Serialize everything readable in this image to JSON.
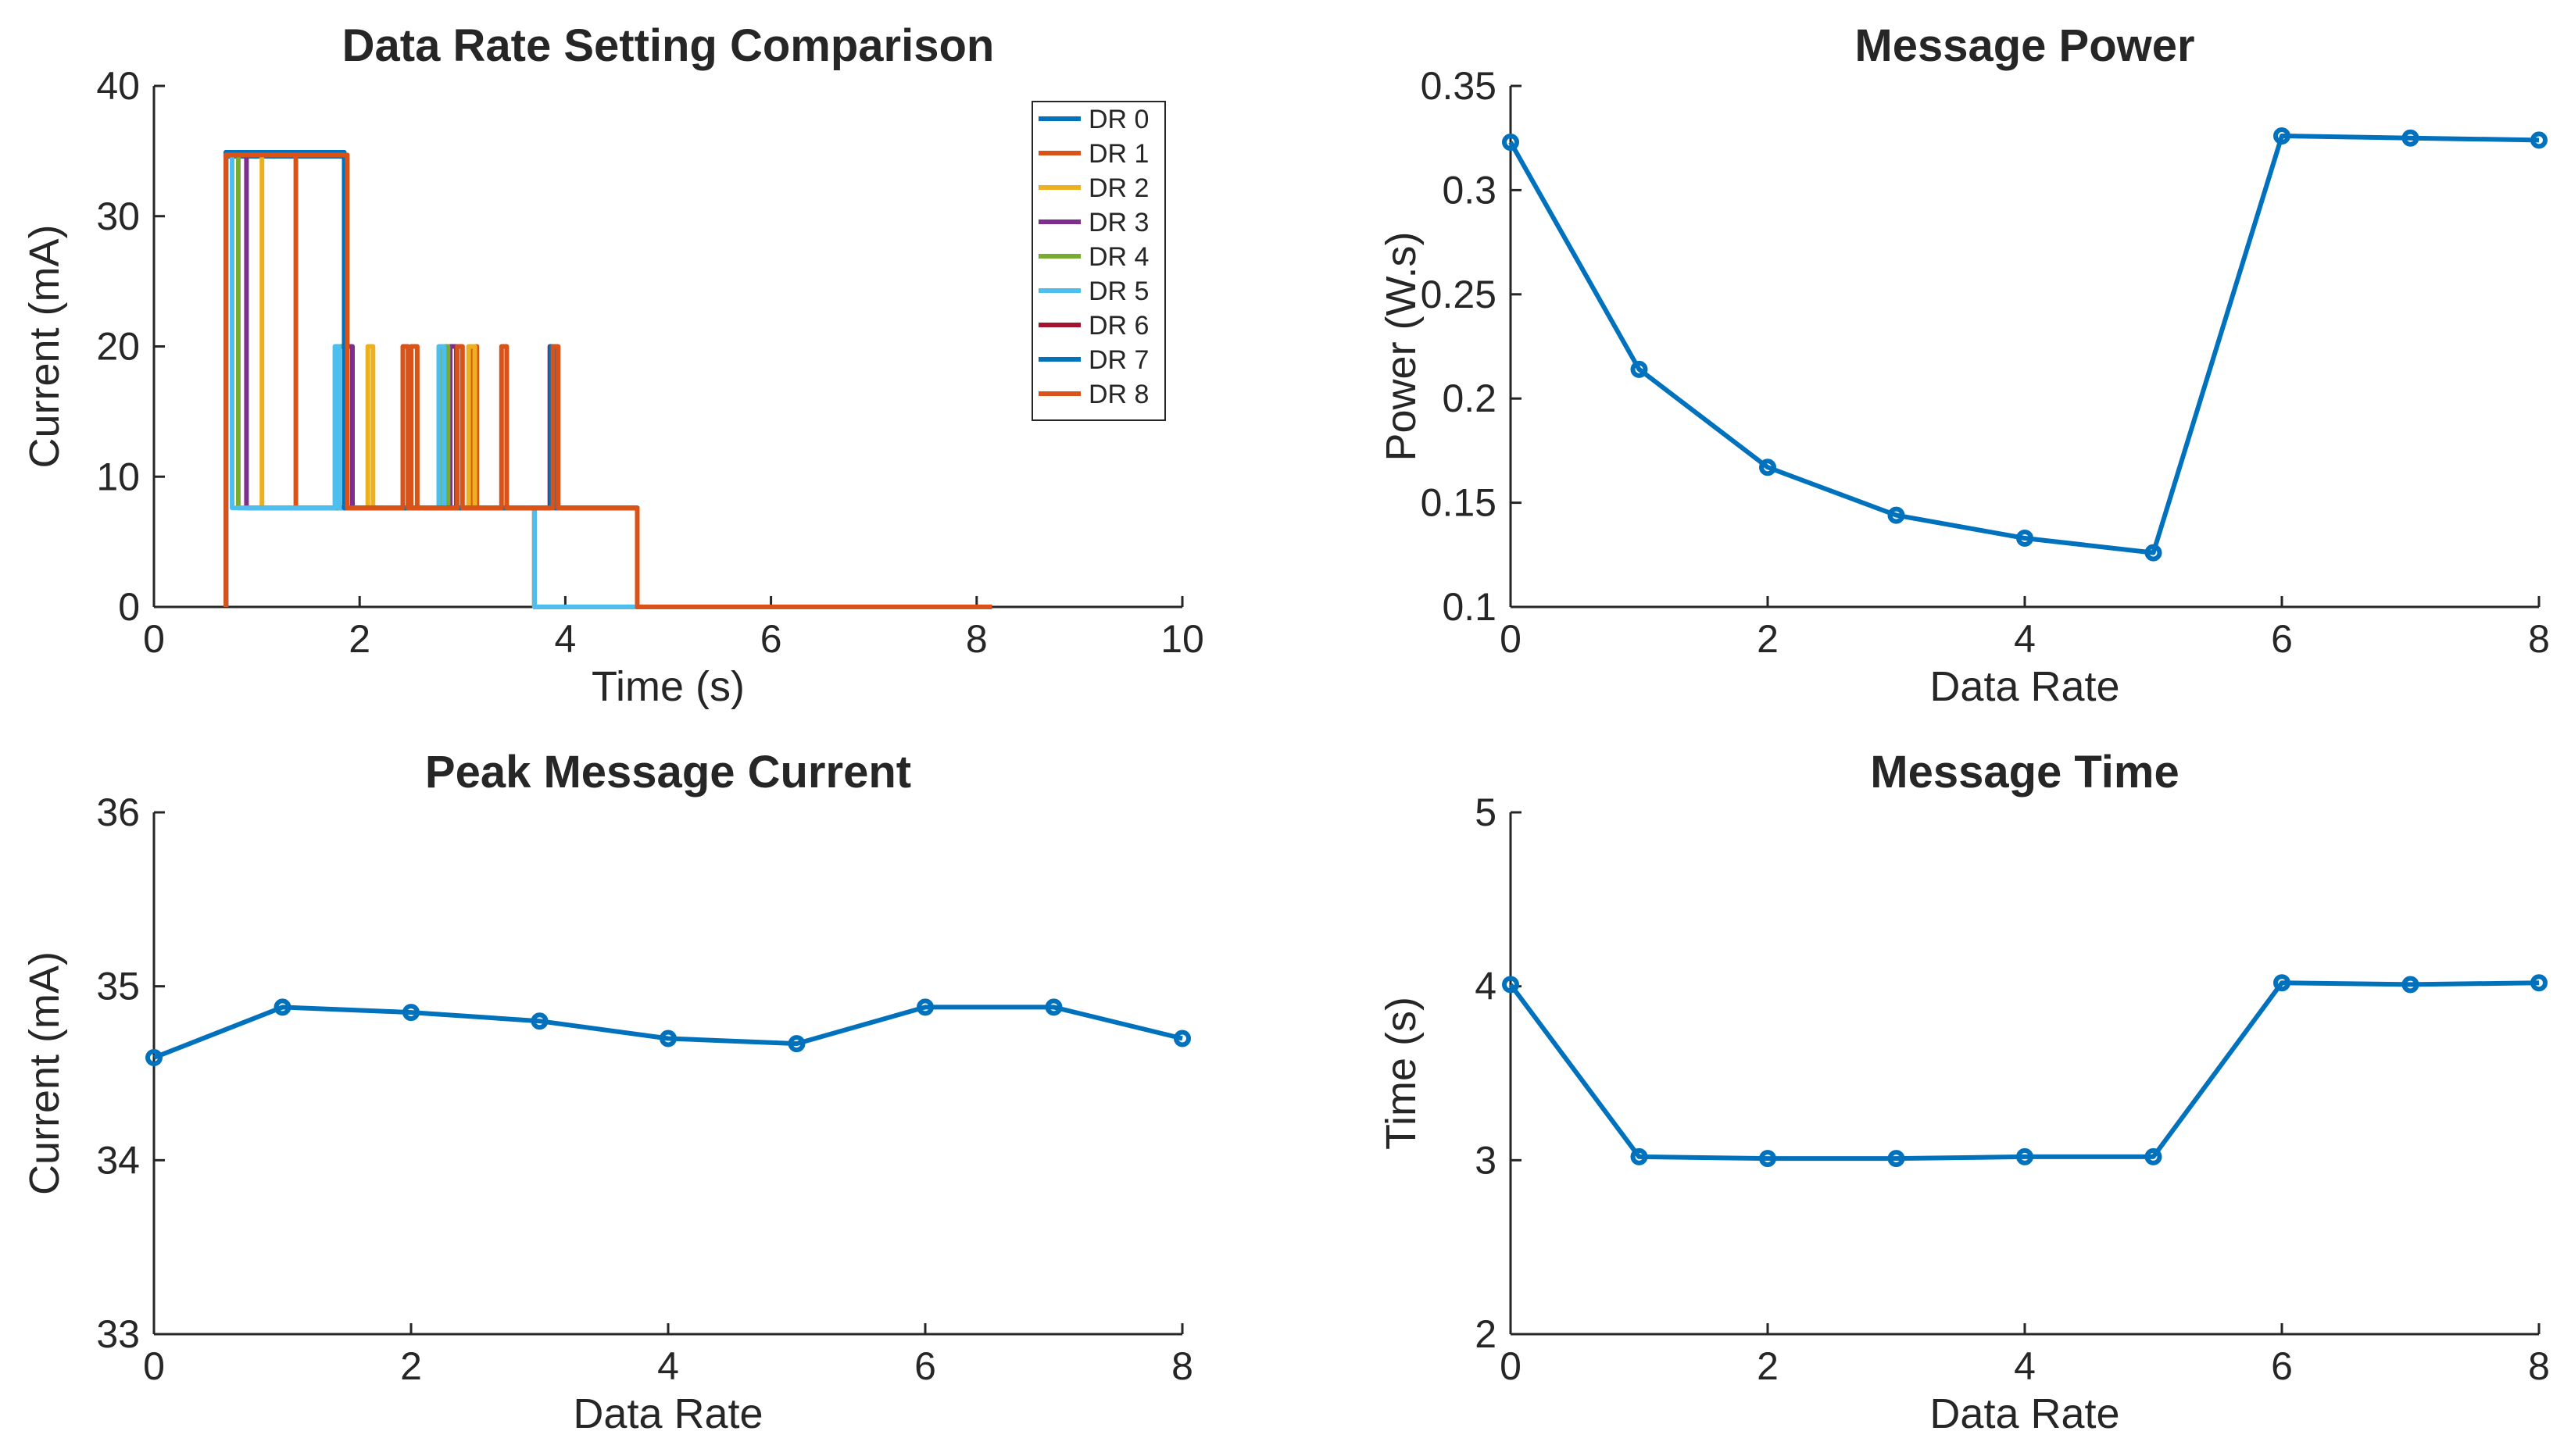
{
  "chart_data": [
    {
      "type": "line",
      "title": "Data Rate Setting Comparison",
      "xlabel": "Time (s)",
      "ylabel": "Current (mA)",
      "xlim": [
        0,
        10
      ],
      "ylim": [
        0,
        40
      ],
      "xticks": [
        "0",
        "2",
        "4",
        "6",
        "8",
        "10"
      ],
      "yticks": [
        "0",
        "10",
        "20",
        "30",
        "40"
      ],
      "legend_position": "top-right",
      "series": [
        {
          "name": "DR 0",
          "color": "#0072BD",
          "x": [
            0.7,
            0.7,
            1.85,
            1.85,
            3.9,
            3.9,
            4.7,
            4.7,
            8.15
          ],
          "y": [
            0,
            34.6,
            34.6,
            7.6,
            7.6,
            7.6,
            7.6,
            0,
            0
          ]
        },
        {
          "name": "DR 1",
          "color": "#D95319",
          "x": [
            0.7,
            0.7,
            1.38,
            1.38,
            2.5,
            2.5,
            2.56,
            2.56,
            3.08,
            3.08,
            3.14,
            3.14,
            4.7,
            4.7,
            8.15
          ],
          "y": [
            0,
            34.9,
            34.9,
            7.6,
            7.6,
            20,
            20,
            7.6,
            7.6,
            20,
            20,
            7.6,
            7.6,
            0,
            0
          ]
        },
        {
          "name": "DR 2",
          "color": "#EDB120",
          "x": [
            0.7,
            0.7,
            1.05,
            1.05,
            2.08,
            2.08,
            2.13,
            2.13,
            3.06,
            3.06,
            3.12,
            3.12,
            3.7,
            3.7,
            8.15
          ],
          "y": [
            0,
            34.8,
            34.8,
            7.6,
            7.6,
            20,
            20,
            7.6,
            7.6,
            20,
            20,
            7.6,
            7.6,
            0,
            0
          ]
        },
        {
          "name": "DR 3",
          "color": "#7E2F8E",
          "x": [
            0.7,
            0.7,
            0.9,
            0.9,
            1.88,
            1.88,
            1.93,
            1.93,
            2.88,
            2.88,
            2.94,
            2.94,
            3.7,
            3.7,
            8.15
          ],
          "y": [
            0,
            34.8,
            34.8,
            7.6,
            7.6,
            20,
            20,
            7.6,
            7.6,
            20,
            20,
            7.6,
            7.6,
            0,
            0
          ]
        },
        {
          "name": "DR 4",
          "color": "#77AC30",
          "x": [
            0.7,
            0.7,
            0.82,
            0.82,
            1.8,
            1.8,
            1.85,
            1.85,
            2.8,
            2.8,
            2.86,
            2.86,
            3.7,
            3.7,
            8.15
          ],
          "y": [
            0,
            34.7,
            34.7,
            7.6,
            7.6,
            20,
            20,
            7.6,
            7.6,
            20,
            20,
            7.6,
            7.6,
            0,
            0
          ]
        },
        {
          "name": "DR 5",
          "color": "#4DBEEE",
          "x": [
            0.7,
            0.7,
            0.76,
            0.76,
            1.76,
            1.76,
            1.8,
            1.8,
            2.77,
            2.77,
            2.82,
            2.82,
            3.7,
            3.7,
            8.15
          ],
          "y": [
            0,
            34.7,
            34.7,
            7.6,
            7.6,
            20,
            20,
            7.6,
            7.6,
            20,
            20,
            7.6,
            7.6,
            0,
            0
          ]
        },
        {
          "name": "DR 6",
          "color": "#A2142F",
          "x": [
            0.7,
            0.7,
            1.85,
            1.85,
            3.85,
            3.85,
            3.9,
            3.9,
            4.7,
            4.7,
            8.15
          ],
          "y": [
            0,
            34.9,
            34.9,
            7.6,
            7.6,
            20,
            20,
            7.6,
            7.6,
            0,
            0
          ]
        },
        {
          "name": "DR 7",
          "color": "#0072BD",
          "x": [
            0.7,
            0.7,
            1.85,
            1.85,
            3.86,
            3.86,
            3.91,
            3.91,
            4.7,
            4.7,
            8.15
          ],
          "y": [
            0,
            34.9,
            34.9,
            7.6,
            7.6,
            20,
            20,
            7.6,
            7.6,
            0,
            0
          ]
        },
        {
          "name": "DR 8",
          "color": "#D95319",
          "x": [
            0.7,
            0.7,
            1.88,
            1.88,
            2.42,
            2.42,
            2.47,
            2.47,
            2.95,
            2.95,
            3.0,
            3.0,
            3.38,
            3.38,
            3.43,
            3.43,
            3.88,
            3.88,
            3.93,
            3.93,
            4.7,
            4.7,
            8.15
          ],
          "y": [
            0,
            34.7,
            34.7,
            7.6,
            7.6,
            20,
            20,
            7.6,
            7.6,
            20,
            20,
            7.6,
            7.6,
            20,
            20,
            7.6,
            7.6,
            20,
            20,
            7.6,
            7.6,
            0,
            0
          ]
        }
      ]
    },
    {
      "type": "line",
      "title": "Message Power",
      "xlabel": "Data Rate",
      "ylabel": "Power (W.s)",
      "xlim": [
        0,
        8
      ],
      "ylim": [
        0.1,
        0.35
      ],
      "xticks": [
        "0",
        "2",
        "4",
        "6",
        "8"
      ],
      "yticks": [
        "0.1",
        "0.15",
        "0.2",
        "0.25",
        "0.3",
        "0.35"
      ],
      "series": [
        {
          "name": "Message Power",
          "color": "#0072BD",
          "x": [
            0,
            1,
            2,
            3,
            4,
            5,
            6,
            7,
            8
          ],
          "y": [
            0.323,
            0.214,
            0.167,
            0.144,
            0.133,
            0.126,
            0.326,
            0.325,
            0.324
          ]
        }
      ]
    },
    {
      "type": "line",
      "title": "Peak Message Current",
      "xlabel": "Data Rate",
      "ylabel": "Current (mA)",
      "xlim": [
        0,
        8
      ],
      "ylim": [
        33,
        36
      ],
      "xticks": [
        "0",
        "2",
        "4",
        "6",
        "8"
      ],
      "yticks": [
        "33",
        "34",
        "35",
        "36"
      ],
      "series": [
        {
          "name": "Peak Message Current",
          "color": "#0072BD",
          "x": [
            0,
            1,
            2,
            3,
            4,
            5,
            6,
            7,
            8
          ],
          "y": [
            34.59,
            34.88,
            34.85,
            34.8,
            34.7,
            34.67,
            34.88,
            34.88,
            34.7
          ]
        }
      ]
    },
    {
      "type": "line",
      "title": "Message Time",
      "xlabel": "Data Rate",
      "ylabel": "Time (s)",
      "xlim": [
        0,
        8
      ],
      "ylim": [
        2,
        5
      ],
      "xticks": [
        "0",
        "2",
        "4",
        "6",
        "8"
      ],
      "yticks": [
        "2",
        "3",
        "4",
        "5"
      ],
      "series": [
        {
          "name": "Message Time",
          "color": "#0072BD",
          "x": [
            0,
            1,
            2,
            3,
            4,
            5,
            6,
            7,
            8
          ],
          "y": [
            4.01,
            3.02,
            3.01,
            3.01,
            3.02,
            3.02,
            4.02,
            4.01,
            4.02
          ]
        }
      ]
    }
  ]
}
